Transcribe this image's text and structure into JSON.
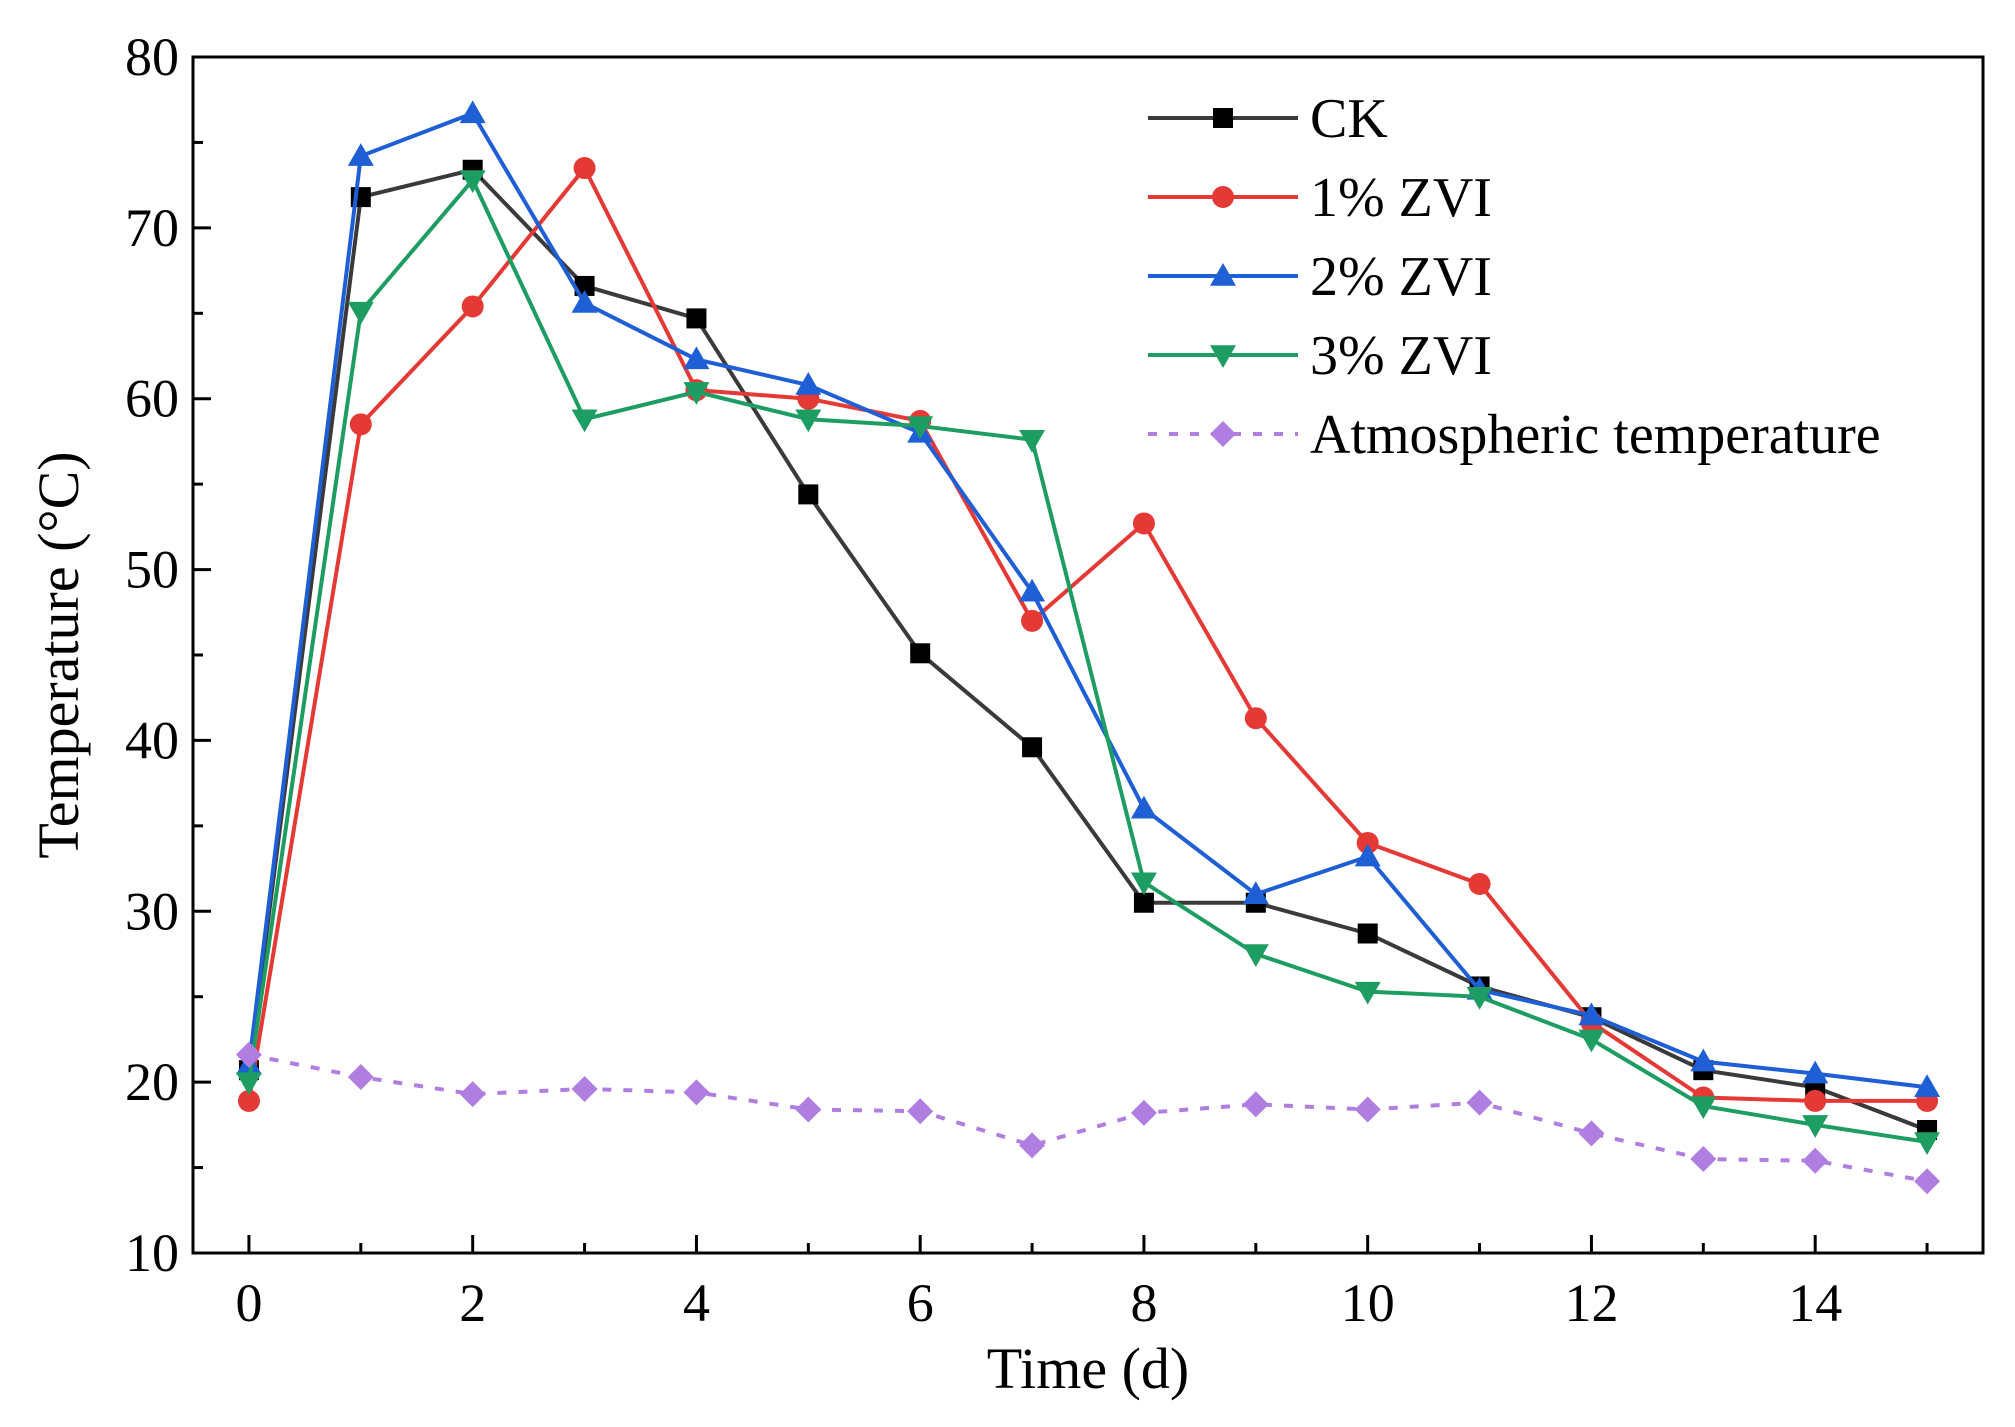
{
  "chart_data": {
    "type": "line",
    "title": "",
    "xlabel": "Time (d)",
    "ylabel": "Temperature (°C)",
    "xlim": [
      -0.5,
      15.5
    ],
    "ylim": [
      10,
      80
    ],
    "x_ticks": [
      0,
      2,
      4,
      6,
      8,
      10,
      12,
      14
    ],
    "x_tick_labels": [
      "0",
      "2",
      "4",
      "6",
      "8",
      "10",
      "12",
      "14"
    ],
    "y_ticks": [
      10,
      20,
      30,
      40,
      50,
      60,
      70,
      80
    ],
    "y_tick_labels": [
      "10",
      "20",
      "30",
      "40",
      "50",
      "60",
      "70",
      "80"
    ],
    "grid": false,
    "legend_position": "top-right",
    "x": [
      0,
      1,
      2,
      3,
      4,
      5,
      6,
      7,
      8,
      9,
      10,
      11,
      12,
      13,
      14,
      15
    ],
    "series": [
      {
        "name": "CK",
        "color": "#000000",
        "line_color": "#3a3a3a",
        "marker": "square",
        "dash": "solid",
        "values": [
          20.7,
          71.8,
          73.4,
          66.6,
          64.7,
          54.4,
          45.1,
          39.6,
          30.5,
          30.5,
          28.7,
          25.6,
          23.8,
          20.7,
          19.7,
          17.2
        ]
      },
      {
        "name": "1% ZVI",
        "color": "#e53935",
        "line_color": "#e53935",
        "marker": "circle",
        "dash": "solid",
        "values": [
          18.9,
          58.5,
          65.4,
          73.5,
          60.5,
          60.0,
          58.7,
          47.0,
          52.7,
          41.3,
          34.0,
          31.6,
          23.5,
          19.1,
          18.9,
          18.9
        ]
      },
      {
        "name": "2% ZVI",
        "color": "#1f5fd6",
        "line_color": "#1f5fd6",
        "marker": "triangle-up",
        "dash": "solid",
        "values": [
          21.0,
          74.2,
          76.7,
          65.6,
          62.3,
          60.8,
          58.0,
          48.7,
          36.0,
          31.0,
          33.2,
          25.4,
          23.9,
          21.2,
          20.5,
          19.7
        ]
      },
      {
        "name": "3% ZVI",
        "color": "#1e9d62",
        "line_color": "#1e9d62",
        "marker": "triangle-down",
        "dash": "solid",
        "values": [
          20.0,
          65.1,
          72.8,
          58.8,
          60.4,
          58.8,
          58.4,
          57.6,
          31.7,
          27.5,
          25.3,
          25.0,
          22.5,
          18.6,
          17.5,
          16.5
        ]
      },
      {
        "name": "Atmospheric temperature",
        "color": "#b07ee0",
        "line_color": "#b07ee0",
        "marker": "diamond",
        "dash": "dotted",
        "values": [
          21.6,
          20.3,
          19.3,
          19.6,
          19.4,
          18.4,
          18.3,
          16.3,
          18.2,
          18.7,
          18.4,
          18.8,
          17.0,
          15.5,
          15.4,
          14.2
        ]
      }
    ]
  }
}
